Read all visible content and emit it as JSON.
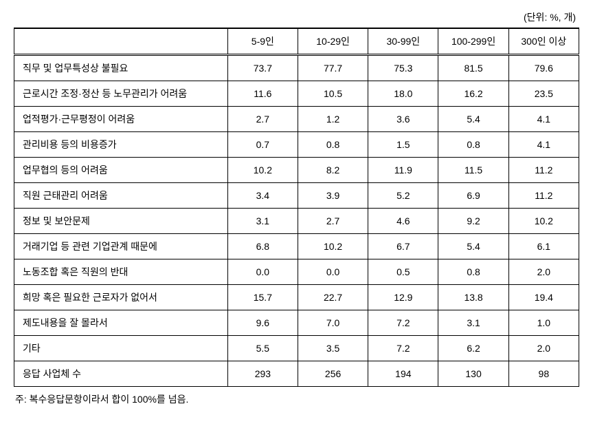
{
  "unit_label": "(단위: %, 개)",
  "columns": [
    "",
    "5-9인",
    "10-29인",
    "30-99인",
    "100-299인",
    "300인 이상"
  ],
  "rows": [
    {
      "label": "직무 및 업무특성상 불필요",
      "values": [
        "73.7",
        "77.7",
        "75.3",
        "81.5",
        "79.6"
      ]
    },
    {
      "label": "근로시간 조정·정산 등 노무관리가 어려움",
      "values": [
        "11.6",
        "10.5",
        "18.0",
        "16.2",
        "23.5"
      ]
    },
    {
      "label": "업적평가·근무평정이 어려움",
      "values": [
        "2.7",
        "1.2",
        "3.6",
        "5.4",
        "4.1"
      ]
    },
    {
      "label": "관리비용 등의 비용증가",
      "values": [
        "0.7",
        "0.8",
        "1.5",
        "0.8",
        "4.1"
      ]
    },
    {
      "label": "업무협의 등의 어려움",
      "values": [
        "10.2",
        "8.2",
        "11.9",
        "11.5",
        "11.2"
      ]
    },
    {
      "label": "직원 근태관리 어려움",
      "values": [
        "3.4",
        "3.9",
        "5.2",
        "6.9",
        "11.2"
      ]
    },
    {
      "label": "정보 및 보안문제",
      "values": [
        "3.1",
        "2.7",
        "4.6",
        "9.2",
        "10.2"
      ]
    },
    {
      "label": "거래기업 등 관련 기업관계 때문에",
      "values": [
        "6.8",
        "10.2",
        "6.7",
        "5.4",
        "6.1"
      ]
    },
    {
      "label": "노동조합 혹은 직원의 반대",
      "values": [
        "0.0",
        "0.0",
        "0.5",
        "0.8",
        "2.0"
      ]
    },
    {
      "label": "희망 혹은 필요한 근로자가 없어서",
      "values": [
        "15.7",
        "22.7",
        "12.9",
        "13.8",
        "19.4"
      ]
    },
    {
      "label": "제도내용을 잘 몰라서",
      "values": [
        "9.6",
        "7.0",
        "7.2",
        "3.1",
        "1.0"
      ]
    },
    {
      "label": "기타",
      "values": [
        "5.5",
        "3.5",
        "7.2",
        "6.2",
        "2.0"
      ]
    },
    {
      "label": "응답 사업체 수",
      "values": [
        "293",
        "256",
        "194",
        "130",
        "98"
      ]
    }
  ],
  "footnote": "주: 복수응답문항이라서 합이 100%를 넘음.",
  "styling": {
    "font_family": "Malgun Gothic",
    "font_size_body": 14,
    "border_color": "#000000",
    "background_color": "#ffffff",
    "col_label_width": 310,
    "col_data_width": 102,
    "header_border_style": "double"
  }
}
